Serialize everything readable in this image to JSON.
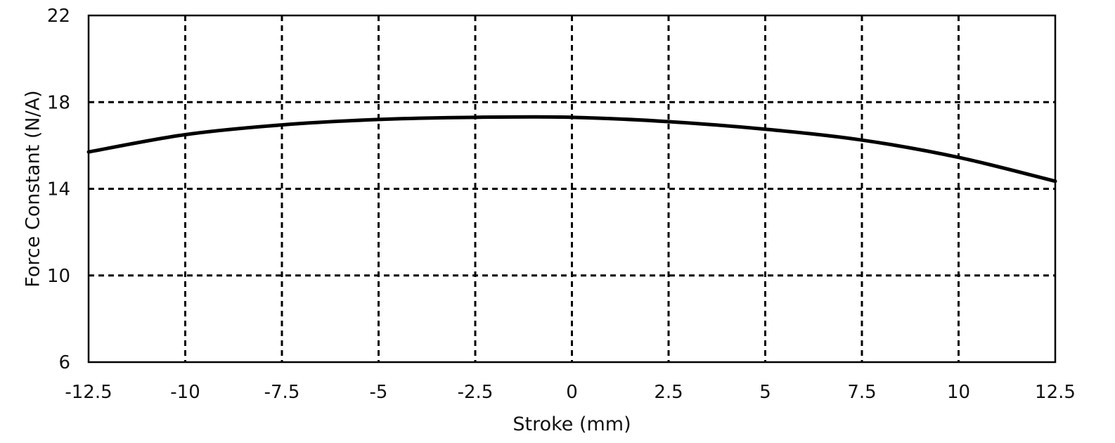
{
  "chart_data": {
    "type": "line",
    "title": "",
    "xlabel": "Stroke (mm)",
    "ylabel": "Force Constant (N/A)",
    "xlim": [
      -12.5,
      12.5
    ],
    "ylim": [
      6,
      22
    ],
    "xticks": [
      -12.5,
      -10,
      -7.5,
      -5,
      -2.5,
      0,
      2.5,
      5,
      7.5,
      10,
      12.5
    ],
    "xtick_labels": [
      "-12.5",
      "-10",
      "-7.5",
      "-5",
      "-2.5",
      "0",
      "2.5",
      "5",
      "7.5",
      "10",
      "12.5"
    ],
    "yticks": [
      6,
      10,
      14,
      18,
      22
    ],
    "ytick_labels": [
      "6",
      "10",
      "14",
      "18",
      "22"
    ],
    "grid": true,
    "legend": false,
    "series": [
      {
        "color": "#000000",
        "x": [
          -12.5,
          -10,
          -7.5,
          -5,
          -2.5,
          0,
          2.5,
          5,
          7.5,
          10,
          12.5
        ],
        "y": [
          15.7,
          16.5,
          16.95,
          17.2,
          17.3,
          17.3,
          17.1,
          16.75,
          16.25,
          15.45,
          14.35
        ]
      }
    ]
  }
}
